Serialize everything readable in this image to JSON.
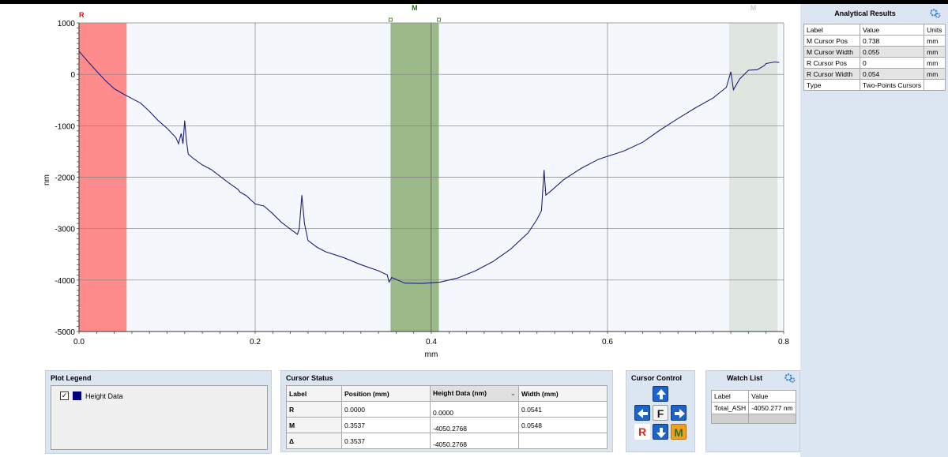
{
  "chart_data": {
    "type": "line",
    "xlabel": "mm",
    "ylabel": "nm",
    "xlim": [
      0,
      0.8
    ],
    "ylim": [
      -5000,
      1000
    ],
    "x_ticks": [
      "0.0",
      "0.2",
      "0.4",
      "0.6",
      "0.8"
    ],
    "y_ticks": [
      "1000",
      "0",
      "-1000",
      "-2000",
      "-3000",
      "-4000",
      "-5000"
    ],
    "grid": true,
    "series": [
      {
        "name": "Height Data",
        "color": "#1f1f7a",
        "points": [
          [
            0.0,
            450
          ],
          [
            0.01,
            250
          ],
          [
            0.02,
            60
          ],
          [
            0.03,
            -120
          ],
          [
            0.04,
            -280
          ],
          [
            0.05,
            -380
          ],
          [
            0.06,
            -470
          ],
          [
            0.07,
            -560
          ],
          [
            0.08,
            -720
          ],
          [
            0.09,
            -900
          ],
          [
            0.1,
            -1050
          ],
          [
            0.11,
            -1230
          ],
          [
            0.113,
            -1350
          ],
          [
            0.116,
            -1150
          ],
          [
            0.118,
            -1350
          ],
          [
            0.12,
            -900
          ],
          [
            0.122,
            -1300
          ],
          [
            0.124,
            -1550
          ],
          [
            0.13,
            -1640
          ],
          [
            0.14,
            -1760
          ],
          [
            0.15,
            -1850
          ],
          [
            0.16,
            -1980
          ],
          [
            0.17,
            -2110
          ],
          [
            0.18,
            -2230
          ],
          [
            0.183,
            -2290
          ],
          [
            0.19,
            -2360
          ],
          [
            0.2,
            -2520
          ],
          [
            0.21,
            -2560
          ],
          [
            0.22,
            -2710
          ],
          [
            0.23,
            -2880
          ],
          [
            0.24,
            -3010
          ],
          [
            0.248,
            -3110
          ],
          [
            0.25,
            -3000
          ],
          [
            0.253,
            -2350
          ],
          [
            0.256,
            -2900
          ],
          [
            0.26,
            -3230
          ],
          [
            0.27,
            -3360
          ],
          [
            0.28,
            -3450
          ],
          [
            0.3,
            -3560
          ],
          [
            0.32,
            -3700
          ],
          [
            0.34,
            -3820
          ],
          [
            0.35,
            -3900
          ],
          [
            0.352,
            -4040
          ],
          [
            0.355,
            -3950
          ],
          [
            0.37,
            -4060
          ],
          [
            0.39,
            -4065
          ],
          [
            0.41,
            -4040
          ],
          [
            0.43,
            -3960
          ],
          [
            0.45,
            -3820
          ],
          [
            0.47,
            -3640
          ],
          [
            0.49,
            -3400
          ],
          [
            0.51,
            -3080
          ],
          [
            0.52,
            -2820
          ],
          [
            0.525,
            -2650
          ],
          [
            0.528,
            -1860
          ],
          [
            0.53,
            -2350
          ],
          [
            0.535,
            -2280
          ],
          [
            0.55,
            -2050
          ],
          [
            0.57,
            -1830
          ],
          [
            0.59,
            -1650
          ],
          [
            0.61,
            -1540
          ],
          [
            0.62,
            -1480
          ],
          [
            0.64,
            -1320
          ],
          [
            0.66,
            -1080
          ],
          [
            0.68,
            -860
          ],
          [
            0.7,
            -650
          ],
          [
            0.72,
            -460
          ],
          [
            0.73,
            -320
          ],
          [
            0.735,
            -250
          ],
          [
            0.74,
            50
          ],
          [
            0.743,
            -300
          ],
          [
            0.75,
            -90
          ],
          [
            0.76,
            80
          ],
          [
            0.77,
            90
          ],
          [
            0.778,
            170
          ],
          [
            0.78,
            210
          ],
          [
            0.79,
            240
          ],
          [
            0.795,
            230
          ]
        ]
      }
    ],
    "cursors": [
      {
        "label": "R",
        "start": 0.0,
        "end": 0.054,
        "color": "#ff8c8c"
      },
      {
        "label": "M",
        "start": 0.3537,
        "end": 0.4085,
        "color": "#9cb98a"
      },
      {
        "label": "M",
        "start": 0.738,
        "end": 0.793,
        "color": "#dfe6df"
      }
    ]
  },
  "analytical_results": {
    "title": "Analytical Results",
    "headers": [
      "Label",
      "Value",
      "Units"
    ],
    "rows": [
      [
        "M Cursor Pos",
        "0.738",
        "mm"
      ],
      [
        "M Cursor Width",
        "0.055",
        "mm"
      ],
      [
        "R Cursor Pos",
        "0",
        "mm"
      ],
      [
        "R Cursor Width",
        "0.054",
        "mm"
      ],
      [
        "Type",
        "Two-Points Cursors",
        ""
      ]
    ]
  },
  "plot_legend": {
    "title": "Plot Legend",
    "item_label": "Height Data",
    "checked": true,
    "swatch_color": "#000080"
  },
  "cursor_status": {
    "title": "Cursor Status",
    "headers": [
      "Label",
      "Position (mm)",
      "Height Data (nm)",
      "Width (mm)"
    ],
    "rows": [
      [
        "R",
        "0.0000",
        "0.0000",
        "0.0541"
      ],
      [
        "M",
        "0.3537",
        "-4050.2768",
        "0.0548"
      ],
      [
        "Δ",
        "0.3537",
        "-4050.2768",
        ""
      ]
    ]
  },
  "cursor_control": {
    "title": "Cursor Control",
    "center_label": "F",
    "r_label": "R",
    "m_label": "M"
  },
  "watch_list": {
    "title": "Watch List",
    "headers": [
      "Label",
      "Value"
    ],
    "rows": [
      [
        "Total_ASH",
        "-4050.277 nm"
      ]
    ]
  }
}
